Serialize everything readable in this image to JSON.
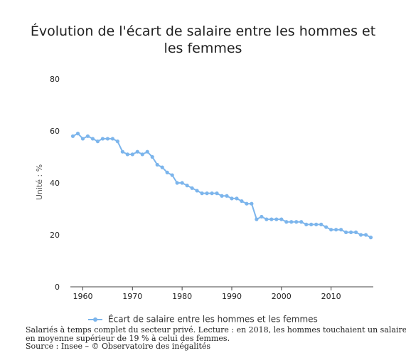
{
  "chart_data": {
    "type": "line",
    "title_lines": [
      "Évolution de l'écart de salaire entre les hommes et",
      "les femmes"
    ],
    "xlabel": "",
    "ylabel": "Unité : %",
    "xlim": [
      1957.5,
      2018.5
    ],
    "ylim": [
      0,
      80
    ],
    "xticks": [
      1960,
      1970,
      1980,
      1990,
      2000,
      2010
    ],
    "yticks": [
      0,
      20,
      40,
      60,
      80
    ],
    "grid": false,
    "legend_position": "bottom-center",
    "color": "#7cb5ec",
    "series": [
      {
        "name": "Écart de salaire entre les hommes et les femmes",
        "x": [
          1958,
          1959,
          1960,
          1961,
          1962,
          1963,
          1964,
          1965,
          1966,
          1967,
          1968,
          1969,
          1970,
          1971,
          1972,
          1973,
          1974,
          1975,
          1976,
          1977,
          1978,
          1979,
          1980,
          1981,
          1982,
          1983,
          1984,
          1985,
          1986,
          1987,
          1988,
          1989,
          1990,
          1991,
          1992,
          1993,
          1994,
          1995,
          1996,
          1997,
          1998,
          1999,
          2000,
          2001,
          2002,
          2003,
          2004,
          2005,
          2006,
          2007,
          2008,
          2009,
          2010,
          2011,
          2012,
          2013,
          2014,
          2015,
          2016,
          2017,
          2018
        ],
        "values": [
          58,
          59,
          57,
          58,
          57,
          56,
          57,
          57,
          57,
          56,
          52,
          51,
          51,
          52,
          51,
          52,
          50,
          47,
          46,
          44,
          43,
          40,
          40,
          39,
          38,
          37,
          36,
          36,
          36,
          36,
          35,
          35,
          34,
          34,
          33,
          32,
          32,
          26,
          27,
          26,
          26,
          26,
          26,
          25,
          25,
          25,
          25,
          24,
          24,
          24,
          24,
          23,
          22,
          22,
          22,
          21,
          21,
          21,
          20,
          20,
          19
        ]
      }
    ]
  },
  "notes": [
    "Salariés à temps complet du secteur privé. Lecture : en 2018, les hommes touchaient un salaire",
    "en moyenne supérieur de 19 % à celui des femmes.",
    "Source : Insee – © Observatoire des inégalités"
  ]
}
